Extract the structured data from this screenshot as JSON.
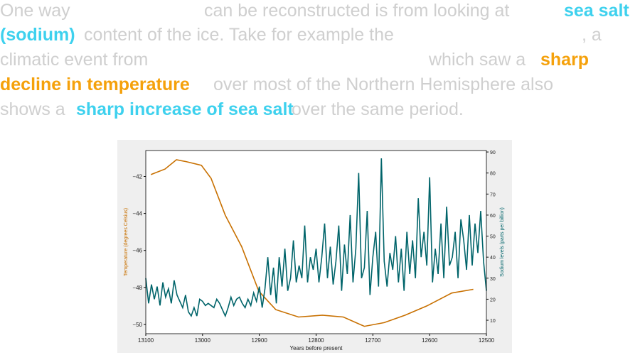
{
  "paragraph": [
    [
      {
        "text": "One way",
        "style": "plain"
      },
      {
        "text": "can be reconstructed is from looking at",
        "style": "plain"
      },
      {
        "text": "sea salt",
        "style": "salt"
      }
    ],
    [
      {
        "text": "(sodium)",
        "style": "salt"
      },
      {
        "text": "content of the ice. Take for example the",
        "style": "plain"
      },
      {
        "text": ", a",
        "style": "plain"
      }
    ],
    [
      {
        "text": "climatic event from",
        "style": "plain"
      },
      {
        "text": "which saw a",
        "style": "plain"
      },
      {
        "text": "sharp",
        "style": "temp"
      }
    ],
    [
      {
        "text": "decline in temperature",
        "style": "temp"
      },
      {
        "text": "over most of the Northern Hemisphere also",
        "style": "plain"
      }
    ],
    [
      {
        "text": "shows a",
        "style": "plain"
      },
      {
        "text": "sharp increase of sea salt",
        "style": "salt"
      },
      {
        "text": "over the same period.",
        "style": "plain"
      }
    ]
  ],
  "chart_data": {
    "type": "line",
    "x_label": "Years before present",
    "y_label": "Temperature (degrees Celsius)",
    "y2_label": "Sodium levels (parts per billion)",
    "xlim": [
      13100,
      12500
    ],
    "xticks": [
      13100,
      13000,
      12900,
      12800,
      12700,
      12600,
      12500
    ],
    "ylim": [
      -50.5,
      -40.6
    ],
    "yticks": [
      {
        "value": -50,
        "label": "−50"
      },
      {
        "value": -48,
        "label": "−48"
      },
      {
        "value": -46,
        "label": "−46"
      },
      {
        "value": -44,
        "label": "−44"
      },
      {
        "value": -42,
        "label": "−42"
      }
    ],
    "y2lim": [
      3.6,
      90.7
    ],
    "y2ticks": [
      10,
      20,
      30,
      40,
      50,
      60,
      70,
      80,
      90
    ],
    "series": [
      {
        "name": "Temperature",
        "color": "#c87000",
        "axis": "y",
        "x": [
          13091,
          13066,
          13046,
          13029,
          13002,
          12985,
          12960,
          12931,
          12901,
          12871,
          12831,
          12789,
          12752,
          12715,
          12680,
          12643,
          12605,
          12561,
          12523
        ],
        "values": [
          -41.9,
          -41.6,
          -41.1,
          -41.2,
          -41.4,
          -42.1,
          -44.1,
          -45.8,
          -48.2,
          -49.2,
          -49.6,
          -49.5,
          -49.6,
          -50.1,
          -49.9,
          -49.5,
          -49.0,
          -48.3,
          -48.1
        ]
      },
      {
        "name": "Sodium",
        "color": "#00646a",
        "axis": "y2",
        "x": [
          13100,
          13095,
          13090,
          13085,
          13080,
          13075,
          13070,
          13065,
          13060,
          13055,
          13050,
          13045,
          13040,
          13035,
          13030,
          13025,
          13020,
          13015,
          13010,
          13005,
          13000,
          12995,
          12990,
          12985,
          12980,
          12975,
          12970,
          12965,
          12960,
          12955,
          12950,
          12945,
          12940,
          12935,
          12930,
          12925,
          12920,
          12915,
          12910,
          12905,
          12900,
          12895,
          12890,
          12885,
          12880,
          12875,
          12870,
          12865,
          12860,
          12855,
          12850,
          12845,
          12840,
          12835,
          12830,
          12825,
          12820,
          12815,
          12810,
          12805,
          12800,
          12795,
          12790,
          12785,
          12780,
          12775,
          12770,
          12765,
          12760,
          12755,
          12750,
          12745,
          12740,
          12735,
          12730,
          12725,
          12720,
          12715,
          12710,
          12705,
          12700,
          12695,
          12690,
          12685,
          12680,
          12675,
          12670,
          12665,
          12660,
          12655,
          12650,
          12645,
          12640,
          12635,
          12630,
          12625,
          12620,
          12615,
          12610,
          12605,
          12600,
          12595,
          12590,
          12585,
          12580,
          12575,
          12570,
          12565,
          12560,
          12555,
          12550,
          12545,
          12540,
          12535,
          12530,
          12525,
          12520,
          12515,
          12510,
          12505,
          12500
        ],
        "values": [
          30,
          18,
          27,
          20,
          26,
          17,
          28,
          21,
          25,
          18,
          29,
          22,
          19,
          16,
          22,
          14,
          12,
          16,
          12,
          20,
          19,
          17,
          18,
          17,
          16,
          20,
          18,
          15,
          12,
          16,
          21,
          17,
          20,
          21,
          18,
          16,
          20,
          17,
          23,
          19,
          26,
          16,
          25,
          40,
          22,
          35,
          18,
          40,
          26,
          44,
          24,
          30,
          48,
          28,
          36,
          30,
          55,
          28,
          40,
          34,
          44,
          28,
          40,
          56,
          30,
          45,
          27,
          38,
          55,
          24,
          46,
          32,
          60,
          28,
          44,
          80,
          30,
          35,
          62,
          22,
          40,
          52,
          26,
          87,
          38,
          26,
          42,
          34,
          50,
          28,
          44,
          24,
          52,
          32,
          48,
          30,
          68,
          40,
          52,
          36,
          78,
          28,
          44,
          32,
          56,
          30,
          64,
          36,
          40,
          52,
          30,
          58,
          48,
          34,
          60,
          36,
          56,
          42,
          62,
          38,
          24
        ]
      }
    ]
  }
}
